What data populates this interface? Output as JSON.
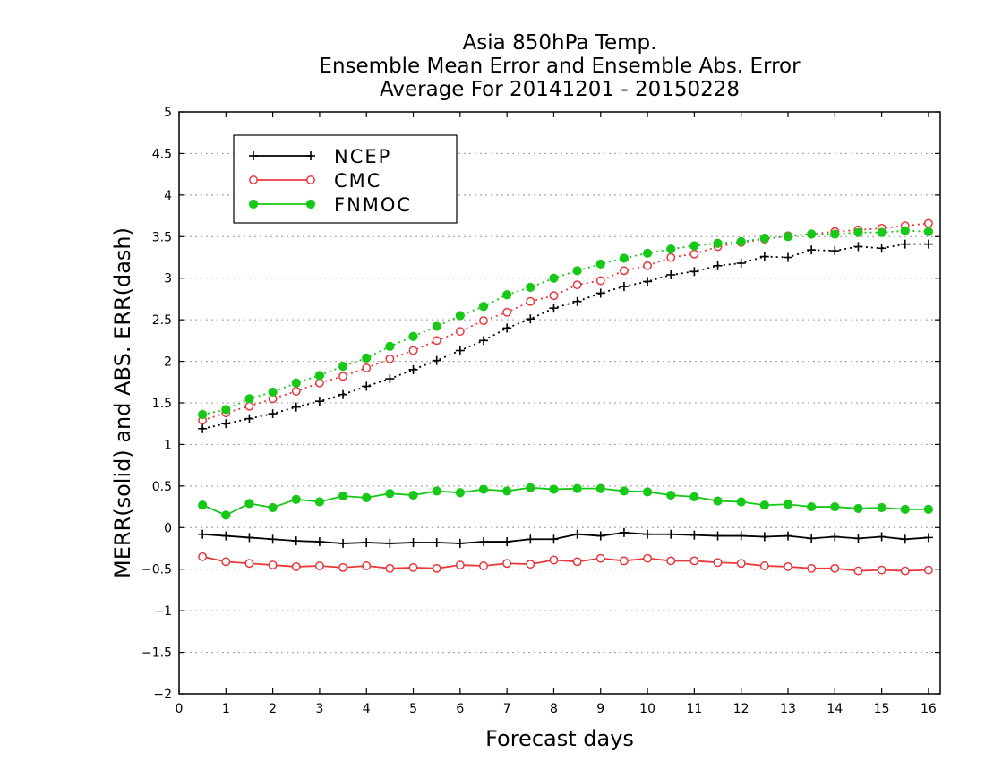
{
  "chart_data": {
    "type": "line",
    "title": "Asia 850hPa Temp.",
    "subtitle_lines": [
      "Ensemble Mean Error and Ensemble Abs. Error",
      "Average For 20141201 - 20150228"
    ],
    "xlabel": "Forecast days",
    "ylabel": "MERR(solid) and ABS. ERR(dash)",
    "xlim": [
      0,
      16.25
    ],
    "ylim": [
      -2,
      5
    ],
    "x_ticks": [
      "0",
      "1",
      "2",
      "3",
      "4",
      "5",
      "6",
      "7",
      "8",
      "9",
      "10",
      "11",
      "12",
      "13",
      "14",
      "15",
      "16"
    ],
    "y_ticks": [
      "5",
      "4.5",
      "4",
      "3.5",
      "3",
      "2.5",
      "2",
      "1.5",
      "1",
      "0.5",
      "0",
      "−0.5",
      "−1",
      "−1.5",
      "−2"
    ],
    "grid": true,
    "legend": {
      "position": "top-left",
      "entries": [
        "NCEP",
        "CMC",
        "FNMOC"
      ]
    },
    "x": [
      0.5,
      1,
      1.5,
      2,
      2.5,
      3,
      3.5,
      4,
      4.5,
      5,
      5.5,
      6,
      6.5,
      7,
      7.5,
      8,
      8.5,
      9,
      9.5,
      10,
      10.5,
      11,
      11.5,
      12,
      12.5,
      13,
      13.5,
      14,
      14.5,
      15,
      15.5,
      16
    ],
    "series": [
      {
        "name": "NCEP",
        "color": "#000000",
        "marker": "plus",
        "mean_error": [
          -0.08,
          -0.1,
          -0.12,
          -0.14,
          -0.16,
          -0.17,
          -0.19,
          -0.18,
          -0.19,
          -0.18,
          -0.18,
          -0.19,
          -0.17,
          -0.17,
          -0.14,
          -0.14,
          -0.08,
          -0.1,
          -0.06,
          -0.08,
          -0.08,
          -0.09,
          -0.1,
          -0.1,
          -0.11,
          -0.1,
          -0.13,
          -0.11,
          -0.13,
          -0.11,
          -0.14,
          -0.12
        ],
        "abs_error": [
          1.19,
          1.25,
          1.31,
          1.37,
          1.45,
          1.52,
          1.6,
          1.7,
          1.79,
          1.9,
          2.01,
          2.13,
          2.25,
          2.4,
          2.51,
          2.64,
          2.72,
          2.82,
          2.9,
          2.96,
          3.04,
          3.08,
          3.15,
          3.18,
          3.26,
          3.25,
          3.34,
          3.33,
          3.38,
          3.36,
          3.41,
          3.41
        ]
      },
      {
        "name": "CMC",
        "color": "#e8383c",
        "marker": "open-circle",
        "mean_error": [
          -0.35,
          -0.41,
          -0.43,
          -0.45,
          -0.47,
          -0.46,
          -0.48,
          -0.46,
          -0.49,
          -0.48,
          -0.49,
          -0.45,
          -0.46,
          -0.43,
          -0.44,
          -0.39,
          -0.41,
          -0.37,
          -0.4,
          -0.37,
          -0.4,
          -0.4,
          -0.42,
          -0.43,
          -0.46,
          -0.47,
          -0.49,
          -0.49,
          -0.52,
          -0.51,
          -0.52,
          -0.51
        ],
        "abs_error": [
          1.29,
          1.38,
          1.46,
          1.55,
          1.64,
          1.74,
          1.82,
          1.92,
          2.03,
          2.13,
          2.25,
          2.36,
          2.49,
          2.59,
          2.72,
          2.79,
          2.92,
          2.97,
          3.09,
          3.15,
          3.25,
          3.29,
          3.38,
          3.43,
          3.47,
          3.51,
          3.53,
          3.56,
          3.58,
          3.6,
          3.63,
          3.66
        ]
      },
      {
        "name": "FNMOC",
        "color": "#18c818",
        "marker": "filled-circle",
        "mean_error": [
          0.27,
          0.15,
          0.29,
          0.24,
          0.34,
          0.31,
          0.38,
          0.36,
          0.41,
          0.39,
          0.44,
          0.42,
          0.46,
          0.44,
          0.48,
          0.46,
          0.47,
          0.47,
          0.44,
          0.43,
          0.39,
          0.37,
          0.32,
          0.31,
          0.27,
          0.28,
          0.25,
          0.25,
          0.23,
          0.24,
          0.22,
          0.22
        ],
        "abs_error": [
          1.36,
          1.42,
          1.55,
          1.63,
          1.74,
          1.83,
          1.94,
          2.04,
          2.18,
          2.3,
          2.42,
          2.55,
          2.66,
          2.8,
          2.89,
          3.0,
          3.09,
          3.17,
          3.24,
          3.3,
          3.35,
          3.39,
          3.42,
          3.44,
          3.48,
          3.5,
          3.53,
          3.53,
          3.55,
          3.55,
          3.57,
          3.56
        ]
      }
    ]
  }
}
